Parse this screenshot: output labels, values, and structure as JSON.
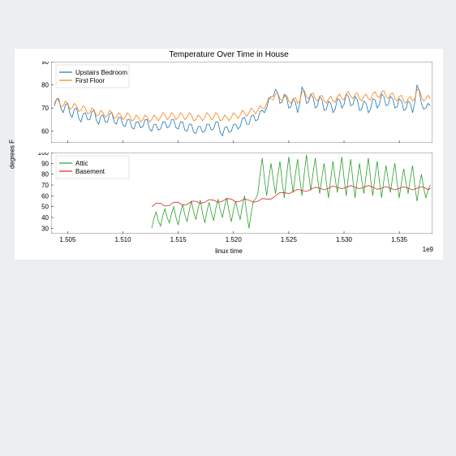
{
  "figure": {
    "title": "Temperature Over Time in House",
    "title_fontsize": 10,
    "ylabel": "degrees F",
    "xlabel": "linux time",
    "label_fontsize": 8,
    "exp_label": "1e9",
    "background_color": "#ffffff",
    "page_background": "#eceeef"
  },
  "top_panel": {
    "type": "line",
    "xlim": [
      1.5035,
      1.538
    ],
    "ylim": [
      55,
      90
    ],
    "xticks": [
      1.505,
      1.51,
      1.515,
      1.52,
      1.525,
      1.53,
      1.535
    ],
    "yticks": [
      60,
      70,
      80,
      90
    ],
    "series": [
      {
        "name": "Upstairs Bedroom",
        "color": "#1f77b4",
        "line_width": 0.8,
        "x": [
          1.5038,
          1.5042,
          1.5046,
          1.505,
          1.5054,
          1.5058,
          1.5062,
          1.5066,
          1.507,
          1.5074,
          1.5078,
          1.5082,
          1.5086,
          1.509,
          1.5094,
          1.5098,
          1.5102,
          1.5106,
          1.511,
          1.5114,
          1.5118,
          1.5122,
          1.5126,
          1.513,
          1.5134,
          1.5138,
          1.5142,
          1.5146,
          1.515,
          1.5154,
          1.5158,
          1.5162,
          1.5166,
          1.517,
          1.5174,
          1.5178,
          1.5182,
          1.5186,
          1.519,
          1.5194,
          1.5198,
          1.5202,
          1.5206,
          1.521,
          1.5214,
          1.5218,
          1.5222,
          1.5226,
          1.523,
          1.5234,
          1.5238,
          1.5242,
          1.5246,
          1.525,
          1.5254,
          1.5258,
          1.5262,
          1.5266,
          1.527,
          1.5274,
          1.5278,
          1.5282,
          1.5286,
          1.529,
          1.5294,
          1.5298,
          1.5302,
          1.5306,
          1.531,
          1.5314,
          1.5318,
          1.5322,
          1.5326,
          1.533,
          1.5334,
          1.5338,
          1.5342,
          1.5346,
          1.535,
          1.5354,
          1.5358,
          1.5362,
          1.5366,
          1.537,
          1.5374,
          1.5378
        ],
        "y": [
          71,
          74,
          68,
          72,
          66,
          70,
          64,
          68,
          65,
          69,
          63,
          67,
          64,
          68,
          63,
          66,
          62,
          65,
          61,
          64,
          62,
          65,
          60,
          63,
          61,
          64,
          62,
          65,
          61,
          64,
          60,
          63,
          59,
          62,
          60,
          63,
          61,
          64,
          58,
          62,
          60,
          63,
          62,
          66,
          63,
          67,
          65,
          69,
          70,
          75,
          78,
          72,
          76,
          70,
          74,
          68,
          79,
          72,
          76,
          70,
          75,
          69,
          73,
          68,
          74,
          70,
          76,
          71,
          75,
          69,
          73,
          68,
          74,
          70,
          76,
          71,
          75,
          70,
          74,
          69,
          73,
          68,
          80,
          72,
          70,
          71
        ]
      },
      {
        "name": "First Floor",
        "color": "#ff7f0e",
        "line_width": 0.8,
        "x": [
          1.5038,
          1.5042,
          1.5046,
          1.505,
          1.5054,
          1.5058,
          1.5062,
          1.5066,
          1.507,
          1.5074,
          1.5078,
          1.5082,
          1.5086,
          1.509,
          1.5094,
          1.5098,
          1.5102,
          1.5106,
          1.511,
          1.5114,
          1.5118,
          1.5122,
          1.5126,
          1.513,
          1.5134,
          1.5138,
          1.5142,
          1.5146,
          1.515,
          1.5154,
          1.5158,
          1.5162,
          1.5166,
          1.517,
          1.5174,
          1.5178,
          1.5182,
          1.5186,
          1.519,
          1.5194,
          1.5198,
          1.5202,
          1.5206,
          1.521,
          1.5214,
          1.5218,
          1.5222,
          1.5226,
          1.523,
          1.5234,
          1.5238,
          1.5242,
          1.5246,
          1.525,
          1.5254,
          1.5258,
          1.5262,
          1.5266,
          1.527,
          1.5274,
          1.5278,
          1.5282,
          1.5286,
          1.529,
          1.5294,
          1.5298,
          1.5302,
          1.5306,
          1.531,
          1.5314,
          1.5318,
          1.5322,
          1.5326,
          1.533,
          1.5334,
          1.5338,
          1.5342,
          1.5346,
          1.535,
          1.5354,
          1.5358,
          1.5362,
          1.5366,
          1.537,
          1.5374,
          1.5378
        ],
        "y": [
          72,
          73,
          71,
          72,
          70,
          71,
          69,
          70,
          68,
          69,
          67,
          68,
          67,
          68,
          66,
          67,
          66,
          67,
          65,
          66,
          65,
          66,
          65,
          66,
          66,
          67,
          66,
          67,
          66,
          67,
          66,
          67,
          65,
          66,
          66,
          67,
          66,
          67,
          65,
          66,
          66,
          67,
          67,
          68,
          68,
          69,
          69,
          70,
          72,
          74,
          76,
          74,
          75,
          73,
          74,
          72,
          77,
          75,
          76,
          74,
          75,
          73,
          74,
          73,
          75,
          74,
          76,
          75,
          76,
          74,
          75,
          74,
          76,
          75,
          77,
          75,
          76,
          74,
          75,
          73,
          74,
          73,
          78,
          75,
          74,
          74
        ]
      }
    ],
    "legend": {
      "position": "upper-left",
      "entries": [
        "Upstairs Bedroom",
        "First Floor"
      ]
    },
    "axis_color": "#000000",
    "tick_fontsize": 8
  },
  "bottom_panel": {
    "type": "line",
    "xlim": [
      1.5035,
      1.538
    ],
    "ylim": [
      25,
      100
    ],
    "xticks": [
      1.505,
      1.51,
      1.515,
      1.52,
      1.525,
      1.53,
      1.535
    ],
    "yticks": [
      30,
      40,
      50,
      60,
      70,
      80,
      90,
      100
    ],
    "series": [
      {
        "name": "Attic",
        "color": "#2ca02c",
        "line_width": 0.8,
        "x": [
          1.5126,
          1.513,
          1.5134,
          1.5138,
          1.5142,
          1.5146,
          1.515,
          1.5154,
          1.5158,
          1.5162,
          1.5166,
          1.517,
          1.5174,
          1.5178,
          1.5182,
          1.5186,
          1.519,
          1.5194,
          1.5198,
          1.5202,
          1.5206,
          1.521,
          1.5214,
          1.5218,
          1.5222,
          1.5226,
          1.523,
          1.5234,
          1.5238,
          1.5242,
          1.5246,
          1.525,
          1.5254,
          1.5258,
          1.5262,
          1.5266,
          1.527,
          1.5274,
          1.5278,
          1.5282,
          1.5286,
          1.529,
          1.5294,
          1.5298,
          1.5302,
          1.5306,
          1.531,
          1.5314,
          1.5318,
          1.5322,
          1.5326,
          1.533,
          1.5334,
          1.5338,
          1.5342,
          1.5346,
          1.535,
          1.5354,
          1.5358,
          1.5362,
          1.5366,
          1.537,
          1.5374,
          1.5378
        ],
        "y": [
          30,
          45,
          32,
          48,
          35,
          50,
          33,
          52,
          36,
          55,
          38,
          56,
          35,
          54,
          37,
          57,
          40,
          58,
          36,
          55,
          38,
          60,
          30,
          55,
          62,
          95,
          60,
          90,
          62,
          92,
          58,
          96,
          63,
          94,
          60,
          98,
          65,
          95,
          62,
          90,
          58,
          92,
          63,
          96,
          60,
          94,
          58,
          90,
          62,
          95,
          60,
          92,
          58,
          88,
          63,
          90,
          58,
          85,
          62,
          88,
          55,
          80,
          58,
          70
        ]
      },
      {
        "name": "Basement",
        "color": "#d62728",
        "line_width": 0.8,
        "x": [
          1.5126,
          1.5134,
          1.5142,
          1.515,
          1.5158,
          1.5166,
          1.5174,
          1.5182,
          1.519,
          1.5198,
          1.5206,
          1.5214,
          1.5222,
          1.523,
          1.5238,
          1.5246,
          1.5254,
          1.5262,
          1.527,
          1.5278,
          1.5286,
          1.5294,
          1.5302,
          1.531,
          1.5318,
          1.5326,
          1.5334,
          1.5342,
          1.535,
          1.5358,
          1.5366,
          1.5374,
          1.5378
        ],
        "y": [
          50,
          53,
          51,
          54,
          52,
          55,
          54,
          56,
          55,
          57,
          55,
          56,
          55,
          57,
          60,
          63,
          64,
          65,
          66,
          67,
          67,
          68,
          68,
          68,
          68,
          68,
          67,
          67,
          67,
          67,
          67,
          67,
          67
        ]
      }
    ],
    "legend": {
      "position": "upper-left",
      "entries": [
        "Attic",
        "Basement"
      ]
    },
    "axis_color": "#000000",
    "tick_fontsize": 8
  }
}
